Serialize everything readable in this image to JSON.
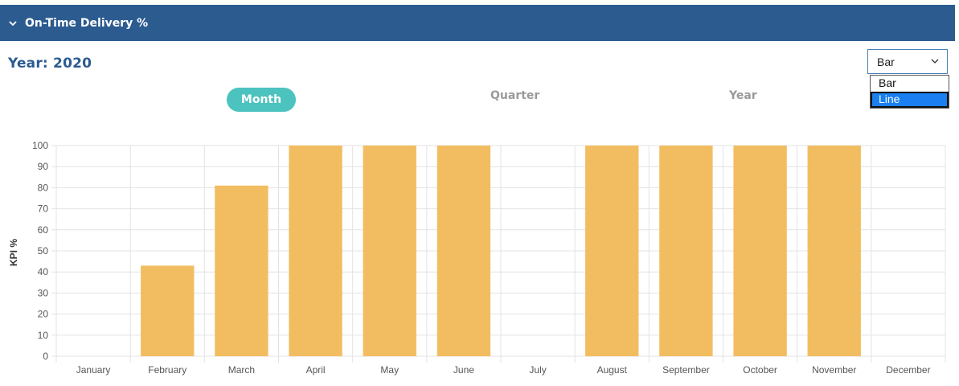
{
  "panel": {
    "title": "On-Time Delivery %",
    "collapse_icon": "chevron-down-icon"
  },
  "year_label": "Year: 2020",
  "chart_type_select": {
    "value": "Bar",
    "options": [
      "Bar",
      "Line"
    ],
    "highlighted_option": "Line"
  },
  "period_toggle": {
    "items": [
      "Month",
      "Quarter",
      "Year"
    ],
    "active": "Month"
  },
  "colors": {
    "header": "#2c5b90",
    "bar": "#f2bd61",
    "toggle_active": "#4dc3bf",
    "option_highlight": "#1a7ff0"
  },
  "chart_data": {
    "type": "bar",
    "categories": [
      "January",
      "February",
      "March",
      "April",
      "May",
      "June",
      "July",
      "August",
      "September",
      "October",
      "November",
      "December"
    ],
    "values": [
      0,
      43,
      81,
      100,
      100,
      100,
      0,
      100,
      100,
      100,
      100,
      0
    ],
    "xlabel": "",
    "ylabel": "KPI %",
    "ylim": [
      0,
      100
    ],
    "yticks": [
      0,
      10,
      20,
      30,
      40,
      50,
      60,
      70,
      80,
      90,
      100
    ],
    "grid": true,
    "legend": "none"
  }
}
